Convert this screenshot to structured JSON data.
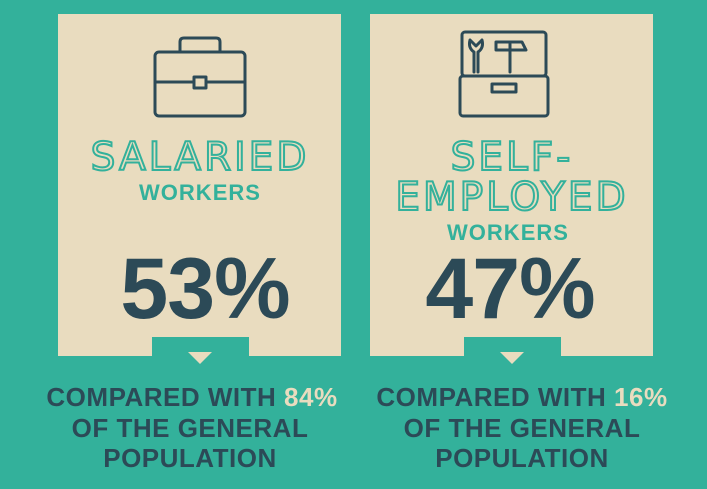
{
  "panels": [
    {
      "title": [
        "SALARIED"
      ],
      "subtitle": "WORKERS",
      "stat": "53%",
      "comparison": {
        "lead": "COMPARED WITH",
        "figure": "84%",
        "lines": [
          "OF THE GENERAL",
          "POPULATION"
        ]
      }
    },
    {
      "title": [
        "SELF-",
        "EMPLOYED"
      ],
      "subtitle": "WORKERS",
      "stat": "47%",
      "comparison": {
        "lead": "COMPARED WITH",
        "figure": "16%",
        "lines": [
          "OF THE GENERAL",
          "POPULATION"
        ]
      }
    }
  ]
}
